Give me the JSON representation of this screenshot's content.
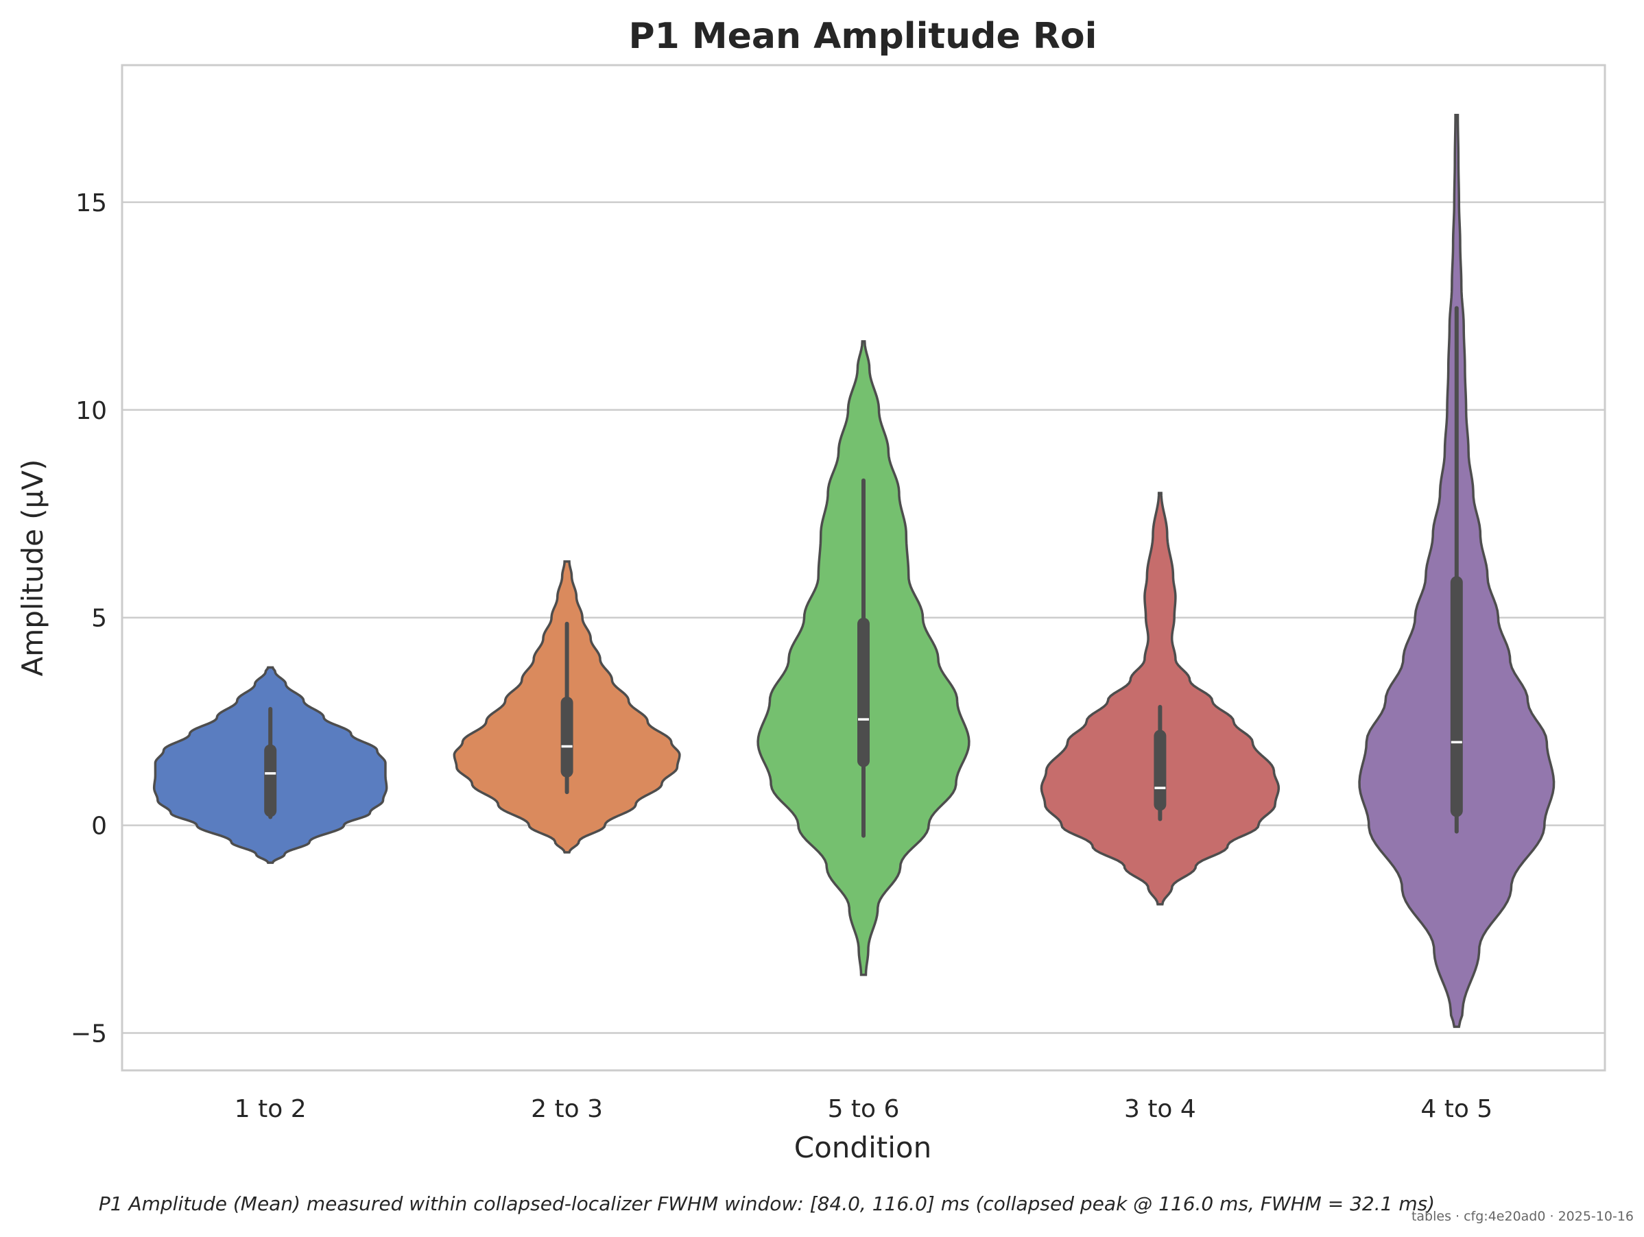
{
  "chart_data": {
    "type": "violin",
    "title": "P1 Mean Amplitude Roi",
    "xlabel": "Condition",
    "ylabel": "Amplitude (μV)",
    "ylim": [
      -5.9,
      18.3
    ],
    "yticks": [
      -5,
      0,
      5,
      10,
      15
    ],
    "ytick_labels": [
      "−5",
      "0",
      "5",
      "10",
      "15"
    ],
    "grid": "horizontal",
    "categories": [
      "1 to 2",
      "2 to 3",
      "5 to 6",
      "3 to 4",
      "4 to 5"
    ],
    "colors": [
      "#5A7DC0",
      "#DA8A5D",
      "#75C06F",
      "#C66D6C",
      "#9377AD"
    ],
    "violins": [
      {
        "category": "1 to 2",
        "kde_min": -0.9,
        "kde_max": 3.8,
        "whisker_low": 0.2,
        "q1": 0.35,
        "median": 1.25,
        "q3": 1.8,
        "whisker_high": 2.8,
        "density": [
          [
            -0.9,
            0.02
          ],
          [
            -0.7,
            0.12
          ],
          [
            -0.4,
            0.33
          ],
          [
            0.0,
            0.62
          ],
          [
            0.3,
            0.84
          ],
          [
            0.6,
            0.95
          ],
          [
            0.9,
            0.98
          ],
          [
            1.2,
            0.97
          ],
          [
            1.5,
            0.97
          ],
          [
            1.8,
            0.9
          ],
          [
            2.2,
            0.68
          ],
          [
            2.6,
            0.45
          ],
          [
            3.0,
            0.28
          ],
          [
            3.4,
            0.13
          ],
          [
            3.7,
            0.04
          ],
          [
            3.8,
            0.02
          ]
        ]
      },
      {
        "category": "2 to 3",
        "kde_min": -0.65,
        "kde_max": 6.35,
        "whisker_low": 0.8,
        "q1": 1.3,
        "median": 1.9,
        "q3": 2.95,
        "whisker_high": 4.85,
        "density": [
          [
            -0.65,
            0.02
          ],
          [
            -0.4,
            0.1
          ],
          [
            0.0,
            0.32
          ],
          [
            0.5,
            0.58
          ],
          [
            1.0,
            0.8
          ],
          [
            1.4,
            0.93
          ],
          [
            1.7,
            0.95
          ],
          [
            2.0,
            0.88
          ],
          [
            2.5,
            0.68
          ],
          [
            3.0,
            0.52
          ],
          [
            3.5,
            0.38
          ],
          [
            4.0,
            0.28
          ],
          [
            4.5,
            0.2
          ],
          [
            5.0,
            0.13
          ],
          [
            5.5,
            0.08
          ],
          [
            6.0,
            0.04
          ],
          [
            6.35,
            0.02
          ]
        ]
      },
      {
        "category": "5 to 6",
        "kde_min": -3.6,
        "kde_max": 11.65,
        "whisker_low": -0.25,
        "q1": 1.55,
        "median": 2.55,
        "q3": 4.85,
        "whisker_high": 8.3,
        "density": [
          [
            -3.6,
            0.02
          ],
          [
            -3.0,
            0.04
          ],
          [
            -2.0,
            0.12
          ],
          [
            -1.0,
            0.31
          ],
          [
            0.0,
            0.55
          ],
          [
            1.0,
            0.78
          ],
          [
            2.0,
            0.89
          ],
          [
            3.0,
            0.79
          ],
          [
            4.0,
            0.63
          ],
          [
            5.0,
            0.5
          ],
          [
            6.0,
            0.38
          ],
          [
            7.0,
            0.36
          ],
          [
            8.0,
            0.3
          ],
          [
            9.0,
            0.21
          ],
          [
            10.0,
            0.13
          ],
          [
            11.0,
            0.05
          ],
          [
            11.65,
            0.01
          ]
        ]
      },
      {
        "category": "3 to 4",
        "kde_min": -1.9,
        "kde_max": 8.0,
        "whisker_low": 0.15,
        "q1": 0.5,
        "median": 0.9,
        "q3": 2.15,
        "whisker_high": 2.85,
        "density": [
          [
            -1.9,
            0.02
          ],
          [
            -1.5,
            0.1
          ],
          [
            -1.0,
            0.3
          ],
          [
            -0.5,
            0.57
          ],
          [
            0.0,
            0.83
          ],
          [
            0.5,
            0.97
          ],
          [
            0.9,
            1.0
          ],
          [
            1.3,
            0.96
          ],
          [
            2.0,
            0.78
          ],
          [
            2.5,
            0.62
          ],
          [
            3.0,
            0.44
          ],
          [
            3.5,
            0.25
          ],
          [
            4.0,
            0.13
          ],
          [
            4.5,
            0.1
          ],
          [
            5.0,
            0.12
          ],
          [
            5.5,
            0.13
          ],
          [
            6.0,
            0.11
          ],
          [
            7.0,
            0.06
          ],
          [
            8.0,
            0.01
          ]
        ]
      },
      {
        "category": "4 to 5",
        "kde_min": -4.85,
        "kde_max": 17.1,
        "whisker_low": -0.15,
        "q1": 0.35,
        "median": 2.0,
        "q3": 5.85,
        "whisker_high": 12.45,
        "density": [
          [
            -4.85,
            0.02
          ],
          [
            -4.5,
            0.05
          ],
          [
            -3.0,
            0.19
          ],
          [
            -1.5,
            0.46
          ],
          [
            0.0,
            0.74
          ],
          [
            1.0,
            0.82
          ],
          [
            2.0,
            0.76
          ],
          [
            3.0,
            0.6
          ],
          [
            4.0,
            0.45
          ],
          [
            5.0,
            0.35
          ],
          [
            6.0,
            0.26
          ],
          [
            7.0,
            0.2
          ],
          [
            8.0,
            0.14
          ],
          [
            9.0,
            0.1
          ],
          [
            10.0,
            0.08
          ],
          [
            11.0,
            0.07
          ],
          [
            12.0,
            0.06
          ],
          [
            13.0,
            0.04
          ],
          [
            14.0,
            0.03
          ],
          [
            15.0,
            0.02
          ],
          [
            16.0,
            0.015
          ],
          [
            17.1,
            0.01
          ]
        ]
      }
    ]
  },
  "caption": "P1 Amplitude (Mean) measured within collapsed-localizer FWHM window: [84.0, 116.0] ms (collapsed peak @ 116.0 ms, FWHM = 32.1 ms)",
  "footer": "tables · cfg:4e20ad0 · 2025-10-16"
}
